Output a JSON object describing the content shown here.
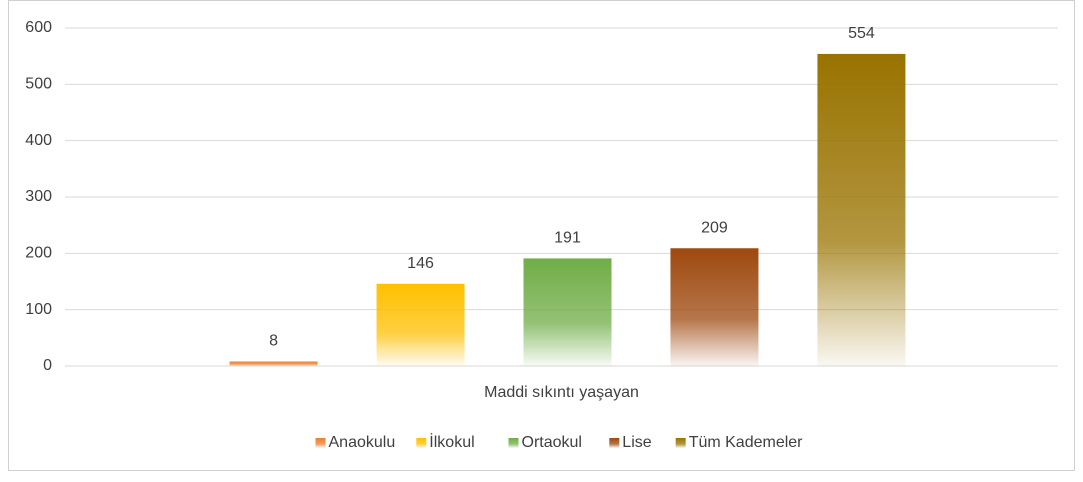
{
  "chart_data": {
    "type": "bar",
    "categories": [
      "Maddi sıkıntı yaşayan"
    ],
    "series": [
      {
        "name": "Anaokulu",
        "color": "#ed7d31",
        "values": [
          8
        ]
      },
      {
        "name": "İlkokul",
        "color": "#ffc000",
        "values": [
          146
        ]
      },
      {
        "name": "Ortaokul",
        "color": "#70ad47",
        "values": [
          191
        ]
      },
      {
        "name": "Lise",
        "color": "#9e480e",
        "values": [
          209
        ]
      },
      {
        "name": "Tüm Kademeler",
        "color": "#997300",
        "values": [
          554
        ]
      }
    ],
    "ylim": [
      0,
      600
    ],
    "yticks": [
      0,
      100,
      200,
      300,
      400,
      500,
      600
    ],
    "grid": true,
    "legend": "bottom"
  }
}
